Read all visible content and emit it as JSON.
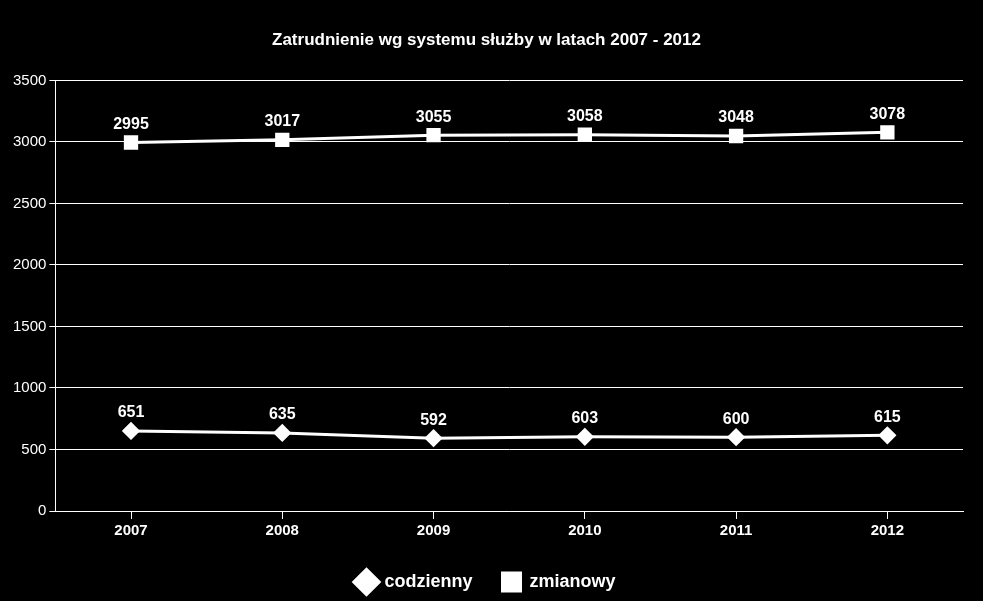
{
  "chart_data": {
    "type": "line",
    "title": "Zatrudnienie wg systemu służby w latach 2007 - 2012",
    "categories": [
      "2007",
      "2008",
      "2009",
      "2010",
      "2011",
      "2012"
    ],
    "series": [
      {
        "name": "codzienny",
        "color": "#ffffff",
        "marker": "diamond",
        "values": [
          651,
          635,
          592,
          603,
          600,
          615
        ]
      },
      {
        "name": "zmianowy",
        "color": "#ffffff",
        "marker": "square",
        "values": [
          2995,
          3017,
          3055,
          3058,
          3048,
          3078
        ]
      }
    ],
    "ylim": [
      0,
      3500
    ],
    "yticks": [
      0,
      500,
      1000,
      1500,
      2000,
      2500,
      3000,
      3500
    ],
    "grid": true,
    "legend": "bottom",
    "data_labels": true
  }
}
